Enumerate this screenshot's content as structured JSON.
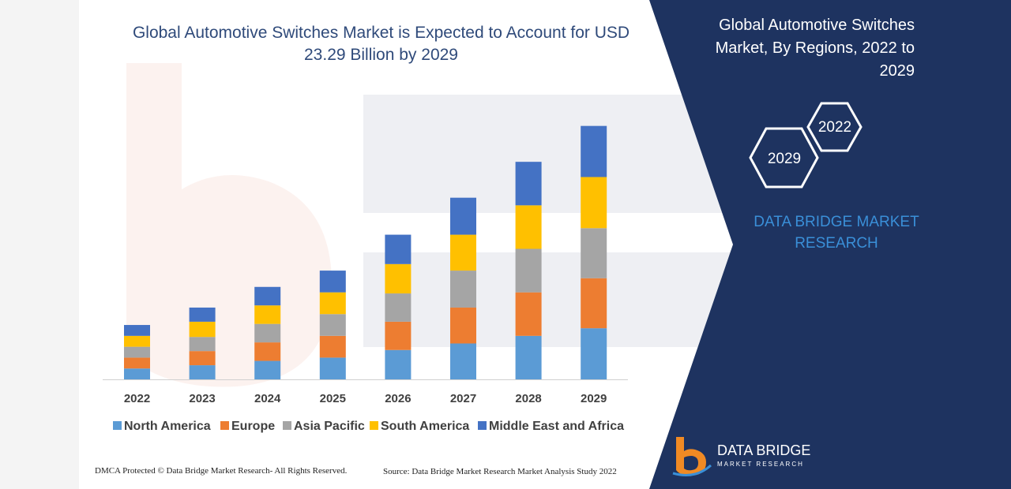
{
  "colors": {
    "panel": "#1e3360",
    "north_america": "#5b9bd5",
    "europe": "#ed7d31",
    "asia_pacific": "#a5a5a5",
    "south_america": "#ffc000",
    "middle_east_africa": "#4472c4",
    "title": "#2f4a7a",
    "brand_blue": "#3a8fd8",
    "logo_orange": "#f08a24"
  },
  "chart_data": {
    "type": "bar",
    "stacked": true,
    "title": "Global Automotive Switches Market is Expected to Account for USD 23.29 Billion by 2029",
    "categories": [
      "2022",
      "2023",
      "2024",
      "2025",
      "2026",
      "2027",
      "2028",
      "2029"
    ],
    "series": [
      {
        "name": "North America",
        "values": [
          1.0,
          1.3,
          1.7,
          2.0,
          2.7,
          3.3,
          4.0,
          4.7
        ]
      },
      {
        "name": "Europe",
        "values": [
          1.0,
          1.3,
          1.7,
          2.0,
          2.6,
          3.3,
          4.0,
          4.6
        ]
      },
      {
        "name": "Asia Pacific",
        "values": [
          1.0,
          1.3,
          1.7,
          2.0,
          2.6,
          3.4,
          4.0,
          4.6
        ]
      },
      {
        "name": "South America",
        "values": [
          1.0,
          1.4,
          1.7,
          2.0,
          2.7,
          3.3,
          4.0,
          4.7
        ]
      },
      {
        "name": "Middle East and Africa",
        "values": [
          1.0,
          1.3,
          1.7,
          2.0,
          2.7,
          3.4,
          4.0,
          4.7
        ]
      }
    ],
    "legend_position": "bottom",
    "grid": false,
    "ylim": [
      0,
      24
    ]
  },
  "panel": {
    "title": "Global Automotive Switches Market, By Regions, 2022 to 2029",
    "hex_start": "2022",
    "hex_end": "2029",
    "brand_text": "DATA BRIDGE MARKET RESEARCH"
  },
  "logo": {
    "name": "DATA BRIDGE",
    "sub": "MARKET RESEARCH"
  },
  "footer": {
    "dmca": "DMCA Protected © Data Bridge Market Research- All Rights Reserved.",
    "source": "Source: Data Bridge Market Research Market Analysis Study 2022"
  }
}
